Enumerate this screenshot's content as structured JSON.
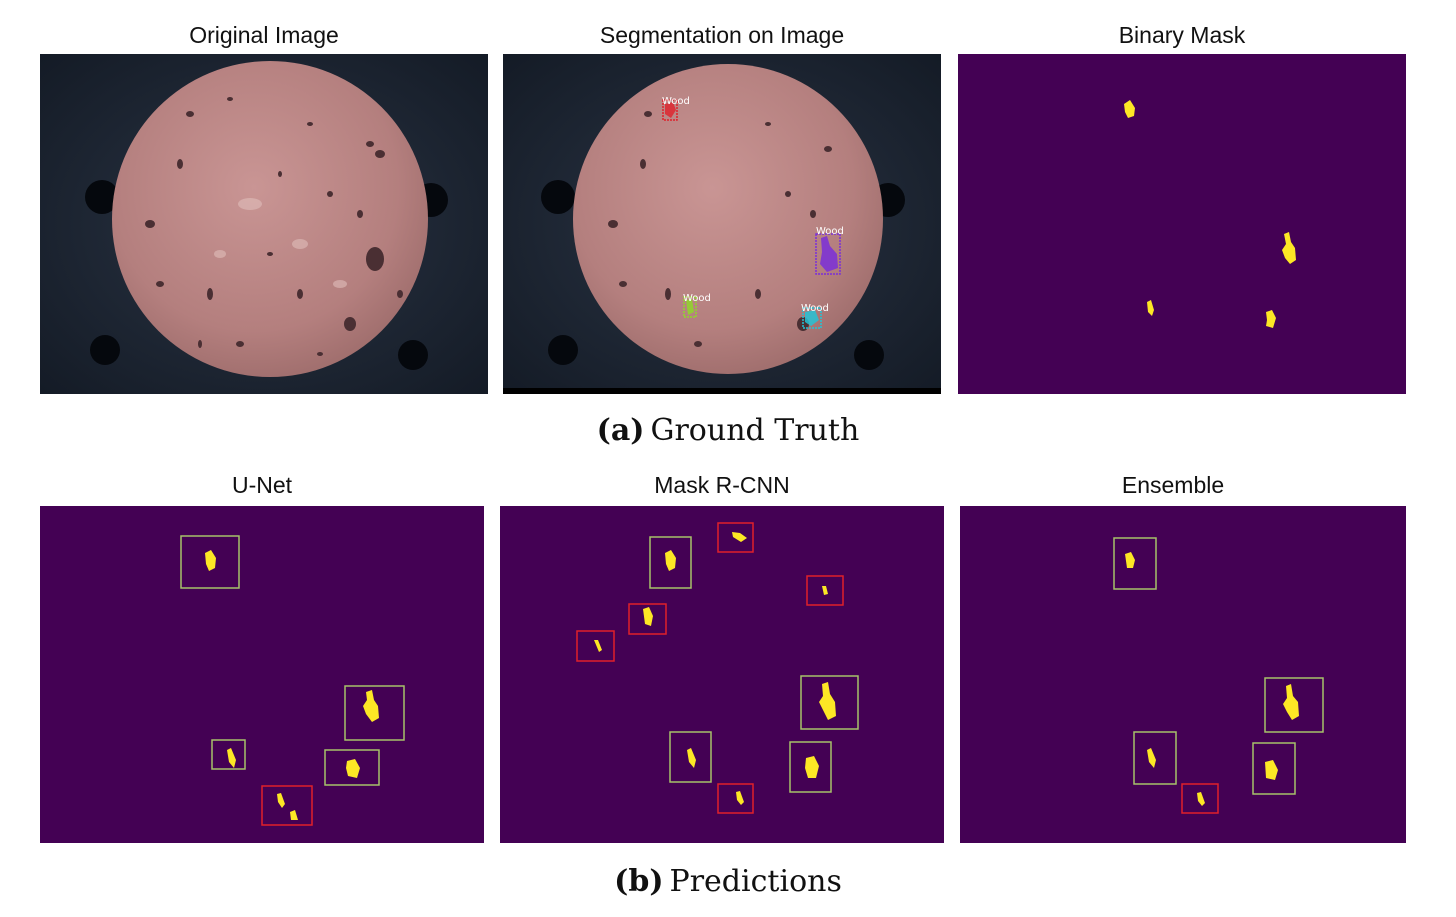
{
  "figure": {
    "colors": {
      "mask_background": "#440154",
      "mask_foreground": "#fde725",
      "box_correct": "#a6c36a",
      "box_incorrect": "#e0202a",
      "surface": "#b98483",
      "fixture": "#1d2633"
    },
    "row_a": {
      "caption_tag": "(a)",
      "caption_text": "Ground Truth",
      "panels": [
        {
          "title": "Original Image"
        },
        {
          "title": "Segmentation on Image",
          "labels": [
            "Wood",
            "Wood",
            "Wood",
            "Wood"
          ]
        },
        {
          "title": "Binary Mask"
        }
      ]
    },
    "row_b": {
      "caption_tag": "(b)",
      "caption_text": "Predictions",
      "panels": [
        {
          "title": "U-Net",
          "correct_boxes": 4,
          "incorrect_boxes": 1
        },
        {
          "title": "Mask R-CNN",
          "correct_boxes": 4,
          "incorrect_boxes": 5
        },
        {
          "title": "Ensemble",
          "correct_boxes": 4,
          "incorrect_boxes": 1
        }
      ]
    }
  }
}
